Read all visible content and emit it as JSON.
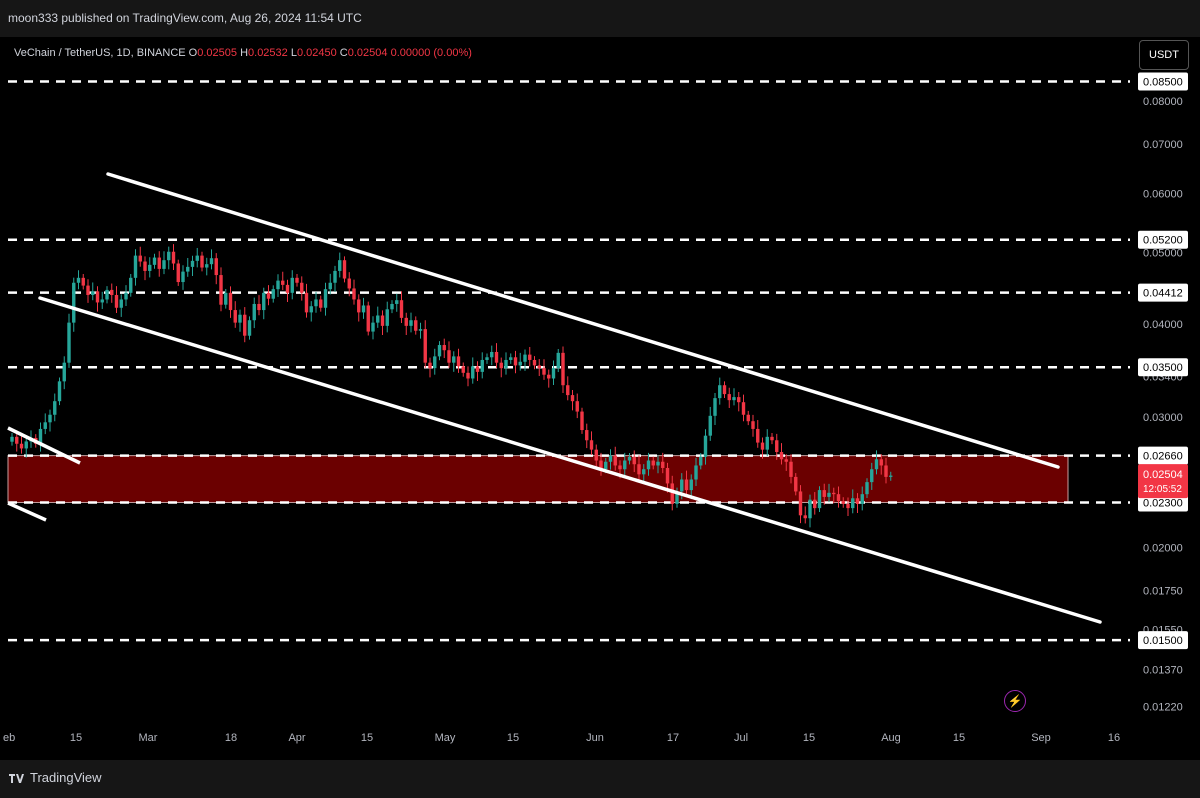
{
  "header": {
    "published": "moon333 published on TradingView.com, Aug 26, 2024 11:54 UTC"
  },
  "legend": {
    "symbol": "VeChain / TetherUS, 1D, BINANCE",
    "o_label": "O",
    "o": "0.02505",
    "h_label": "H",
    "h": "0.02532",
    "l_label": "L",
    "l": "0.02450",
    "c_label": "C",
    "c": "0.02504",
    "change": "0.00000 (0.00%)"
  },
  "currency_button": "USDT",
  "footer": {
    "brand": "TradingView",
    "logo_icon": "tradingview-logo-icon"
  },
  "colors": {
    "up": "#26a69a",
    "down": "#f23645",
    "zone_fill": "#6b0000",
    "channel": "#ffffff",
    "level_line": "#ffffff",
    "background": "#000000",
    "price_badge": "#f23645"
  },
  "chart_data": {
    "type": "candlestick",
    "symbol": "VeChain / TetherUS",
    "interval": "1D",
    "exchange": "BINANCE",
    "y_scale": "log",
    "ylim": [
      0.0115,
      0.0893
    ],
    "x_ticks": [
      "eb",
      "15",
      "Mar",
      "18",
      "Apr",
      "15",
      "May",
      "15",
      "Jun",
      "17",
      "Jul",
      "15",
      "Aug",
      "15",
      "Sep",
      "16"
    ],
    "y_ticks": [
      "0.08000",
      "0.07000",
      "0.06000",
      "0.05000",
      "0.04000",
      "0.03400",
      "0.03000",
      "0.02000",
      "0.01750",
      "0.01550",
      "0.01370",
      "0.01220"
    ],
    "horizontal_levels": [
      "0.08500",
      "0.05200",
      "0.04412",
      "0.03500",
      "0.02660",
      "0.02300",
      "0.01500"
    ],
    "zone": {
      "low": 0.023,
      "high": 0.0266
    },
    "current_price": "0.02504",
    "countdown": "12:05:52",
    "closes": [
      0.0282,
      0.0276,
      0.0272,
      0.0278,
      0.0281,
      0.0276,
      0.0289,
      0.0295,
      0.0302,
      0.0315,
      0.0335,
      0.0355,
      0.0402,
      0.0455,
      0.0462,
      0.0451,
      0.0438,
      0.0443,
      0.0428,
      0.0432,
      0.0445,
      0.0438,
      0.0421,
      0.0432,
      0.0441,
      0.0462,
      0.0495,
      0.0486,
      0.0472,
      0.0481,
      0.0492,
      0.0475,
      0.0488,
      0.0501,
      0.0483,
      0.0456,
      0.0471,
      0.0478,
      0.0487,
      0.0495,
      0.0477,
      0.0482,
      0.0491,
      0.0466,
      0.0425,
      0.0441,
      0.0418,
      0.0402,
      0.0412,
      0.0386,
      0.0405,
      0.0426,
      0.0418,
      0.0441,
      0.0433,
      0.0446,
      0.0458,
      0.0452,
      0.0441,
      0.0462,
      0.0455,
      0.0441,
      0.0415,
      0.0423,
      0.0432,
      0.0421,
      0.0446,
      0.0455,
      0.0472,
      0.0488,
      0.0461,
      0.0447,
      0.0432,
      0.0415,
      0.0424,
      0.0391,
      0.0402,
      0.0411,
      0.0398,
      0.0419,
      0.0426,
      0.0431,
      0.0408,
      0.0398,
      0.0405,
      0.0392,
      0.0394,
      0.0355,
      0.0349,
      0.0362,
      0.0375,
      0.0369,
      0.0355,
      0.0362,
      0.0351,
      0.0344,
      0.0338,
      0.0351,
      0.0345,
      0.0358,
      0.0361,
      0.0367,
      0.0355,
      0.0349,
      0.0358,
      0.0361,
      0.0352,
      0.0356,
      0.0364,
      0.0358,
      0.0352,
      0.0349,
      0.0342,
      0.0338,
      0.0349,
      0.0366,
      0.0331,
      0.0321,
      0.0315,
      0.0305,
      0.0288,
      0.0279,
      0.0271,
      0.0262,
      0.0255,
      0.0261,
      0.0266,
      0.0258,
      0.0255,
      0.0262,
      0.0265,
      0.0259,
      0.0251,
      0.0255,
      0.0262,
      0.0258,
      0.0261,
      0.0256,
      0.0244,
      0.0229,
      0.0238,
      0.0247,
      0.0239,
      0.0247,
      0.0258,
      0.0265,
      0.0283,
      0.0301,
      0.0318,
      0.0331,
      0.0322,
      0.0316,
      0.0319,
      0.0314,
      0.0302,
      0.0296,
      0.0289,
      0.0277,
      0.0271,
      0.0282,
      0.0279,
      0.0269,
      0.0263,
      0.0261,
      0.0249,
      0.0238,
      0.0221,
      0.0219,
      0.0232,
      0.0226,
      0.0239,
      0.0234,
      0.0237,
      0.0236,
      0.0231,
      0.0229,
      0.0226,
      0.0233,
      0.0229,
      0.0236,
      0.0245,
      0.0255,
      0.0263,
      0.0258,
      0.0249,
      0.025
    ]
  }
}
